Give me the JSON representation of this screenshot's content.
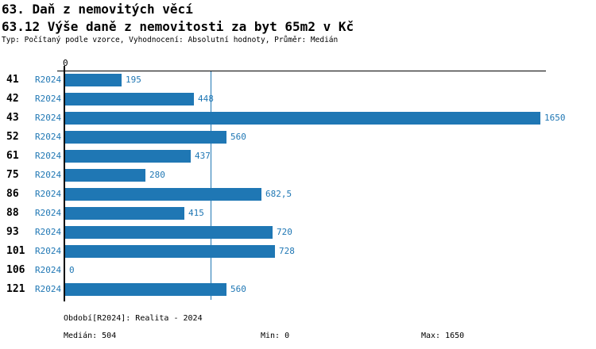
{
  "header": {
    "title": "63. Daň z nemovitých věcí",
    "subtitle": "63.12 Výše daně z nemovitosti za byt 65m2 v Kč",
    "meta": "Typ: Počítaný podle vzorce, Vyhodnocení: Absolutní hodnoty, Průměr: Medián"
  },
  "chart_data": {
    "type": "bar",
    "orientation": "horizontal",
    "title": "63.12 Výše daně z nemovitosti za byt 65m2 v Kč",
    "series_label": "R2024",
    "categories": [
      "41",
      "42",
      "43",
      "52",
      "61",
      "75",
      "86",
      "88",
      "93",
      "101",
      "106",
      "121"
    ],
    "values": [
      195,
      448,
      1650,
      560,
      437,
      280,
      682.5,
      415,
      720,
      728,
      0,
      560
    ],
    "value_labels": [
      "195",
      "448",
      "1650",
      "560",
      "437",
      "280",
      "682,5",
      "415",
      "720",
      "728",
      "0",
      "560"
    ],
    "xlim": [
      0,
      1650
    ],
    "zero_tick_label": "0",
    "median_value": 504,
    "grid": false,
    "legend": false,
    "bar_color": "#1f77b4",
    "median_line_color": "#1f77b4",
    "label_color": "#1f77b4"
  },
  "footer": {
    "period": "Období[R2024]: Realita - 2024",
    "median": "Medián: 504",
    "min": "Min: 0",
    "max": "Max: 1650"
  }
}
